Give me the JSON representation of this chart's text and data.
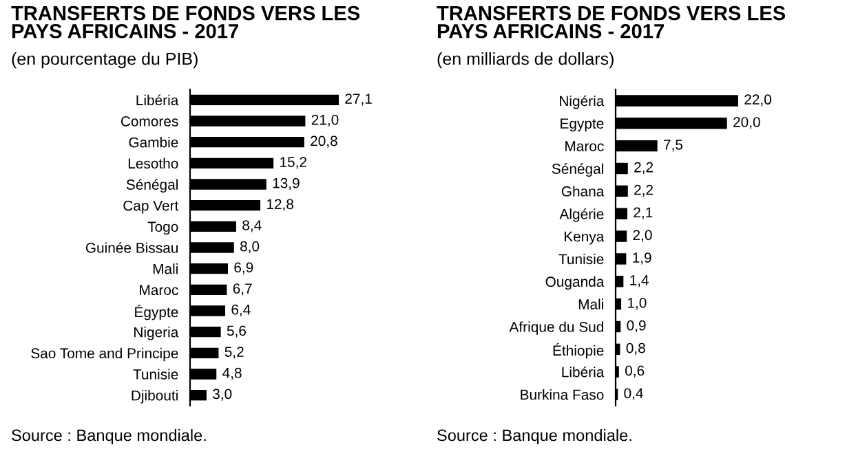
{
  "chart_data": [
    {
      "type": "bar",
      "orientation": "horizontal",
      "title": "TRANSFERTS DE FONDS VERS LES\nPAYS AFRICAINS - 2017",
      "subtitle": "(en pourcentage du PIB)",
      "categories": [
        "Libéria",
        "Comores",
        "Gambie",
        "Lesotho",
        "Sénégal",
        "Cap Vert",
        "Togo",
        "Guinée Bissau",
        "Mali",
        "Maroc",
        "Égypte",
        "Nigeria",
        "Sao Tome and Principe",
        "Tunisie",
        "Djibouti"
      ],
      "values": [
        27.1,
        21.0,
        20.8,
        15.2,
        13.9,
        12.8,
        8.4,
        8.0,
        6.9,
        6.7,
        6.4,
        5.6,
        5.2,
        4.8,
        3.0
      ],
      "value_labels": [
        "27,1",
        "21,0",
        "20,8",
        "15,2",
        "13,9",
        "12,8",
        "8,4",
        "8,0",
        "6,9",
        "6,7",
        "6,4",
        "5,6",
        "5,2",
        "4,8",
        "3,0"
      ],
      "color": "#000000",
      "grid": false,
      "legend": false,
      "tick_labels": "y",
      "annotations": [
        "Source : Banque mondiale."
      ]
    },
    {
      "type": "bar",
      "orientation": "horizontal",
      "title": "TRANSFERTS DE FONDS VERS LES\nPAYS AFRICAINS - 2017",
      "subtitle": "(en milliards de dollars)",
      "categories": [
        "Nigéria",
        "Egypte",
        "Maroc",
        "Sénégal",
        "Ghana",
        "Algérie",
        "Kenya",
        "Tunisie",
        "Ouganda",
        "Mali",
        "Afrique du Sud",
        "Éthiopie",
        "Libéria",
        "Burkina Faso"
      ],
      "values": [
        22.0,
        20.0,
        7.5,
        2.2,
        2.2,
        2.1,
        2.0,
        1.9,
        1.4,
        1.0,
        0.9,
        0.8,
        0.6,
        0.4
      ],
      "value_labels": [
        "22,0",
        "20,0",
        "7,5",
        "2,2",
        "2,2",
        "2,1",
        "2,0",
        "1,9",
        "1,4",
        "1,0",
        "0,9",
        "0,8",
        "0,6",
        "0,4"
      ],
      "color": "#000000",
      "grid": false,
      "legend": false,
      "tick_labels": "y",
      "annotations": [
        "Source : Banque mondiale."
      ]
    }
  ]
}
